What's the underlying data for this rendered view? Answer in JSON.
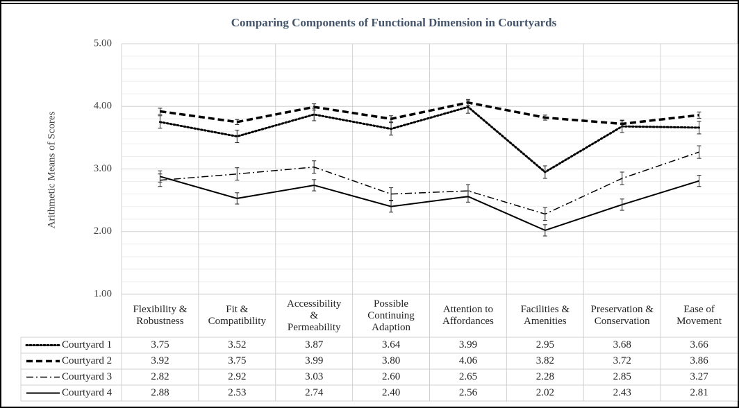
{
  "chart_data": {
    "type": "line",
    "title": "Comparing Components of Functional Dimension in Courtyards",
    "y_label": "Arithmetic Means of Scores",
    "categories": [
      "Flexibility & Robustness",
      "Fit & Compatibility",
      "Accessibility & Permeability",
      "Possible Continuing Adaption",
      "Attention to Affordances",
      "Facilities & Amenities",
      "Preservation & Conservation",
      "Ease of Movement"
    ],
    "series": [
      {
        "name": "Courtyard 1",
        "color": "#000000",
        "dash": "dotted",
        "values": [
          3.75,
          3.52,
          3.87,
          3.64,
          3.99,
          2.95,
          3.68,
          3.66
        ],
        "value_labels": [
          "3.75",
          "3.52",
          "3.87",
          "3.64",
          "3.99",
          "2.95",
          "3.68",
          "3.66"
        ],
        "errors": [
          0.1,
          0.1,
          0.1,
          0.1,
          0.1,
          0.1,
          0.1,
          0.1
        ]
      },
      {
        "name": "Courtyard 2",
        "color": "#000000",
        "dash": "dashed",
        "values": [
          3.92,
          3.75,
          3.99,
          3.8,
          4.06,
          3.82,
          3.72,
          3.86
        ],
        "value_labels": [
          "3.92",
          "3.75",
          "3.99",
          "3.80",
          "4.06",
          "3.82",
          "3.72",
          "3.86"
        ],
        "errors": [
          0.05,
          0.04,
          0.05,
          0.05,
          0.05,
          0.04,
          0.05,
          0.05
        ]
      },
      {
        "name": "Courtyard 3",
        "color": "#000000",
        "dash": "dashdot",
        "values": [
          2.82,
          2.92,
          3.03,
          2.6,
          2.65,
          2.28,
          2.85,
          3.27
        ],
        "value_labels": [
          "2.82",
          "2.92",
          "3.03",
          "2.60",
          "2.65",
          "2.28",
          "2.85",
          "3.27"
        ],
        "errors": [
          0.1,
          0.1,
          0.1,
          0.1,
          0.1,
          0.1,
          0.1,
          0.1
        ]
      },
      {
        "name": "Courtyard 4",
        "color": "#000000",
        "dash": "solid",
        "values": [
          2.88,
          2.53,
          2.74,
          2.4,
          2.56,
          2.02,
          2.43,
          2.81
        ],
        "value_labels": [
          "2.88",
          "2.53",
          "2.74",
          "2.40",
          "2.56",
          "2.02",
          "2.43",
          "2.81"
        ],
        "errors": [
          0.09,
          0.09,
          0.09,
          0.09,
          0.09,
          0.09,
          0.09,
          0.09
        ]
      }
    ],
    "ylim": [
      1,
      5
    ],
    "yticks": [
      {
        "value": 1,
        "label": "1.00"
      },
      {
        "value": 2,
        "label": "2.00"
      },
      {
        "value": 3,
        "label": "3.00"
      },
      {
        "value": 4,
        "label": "4.00"
      },
      {
        "value": 5,
        "label": "5.00"
      }
    ],
    "minor_yticks": [
      1.2,
      1.4,
      1.6,
      1.8,
      2.2,
      2.4,
      2.6,
      2.8,
      3.2,
      3.4,
      3.6,
      3.8,
      4.2,
      4.4,
      4.6,
      4.8
    ],
    "grid": true,
    "legend": "table"
  }
}
